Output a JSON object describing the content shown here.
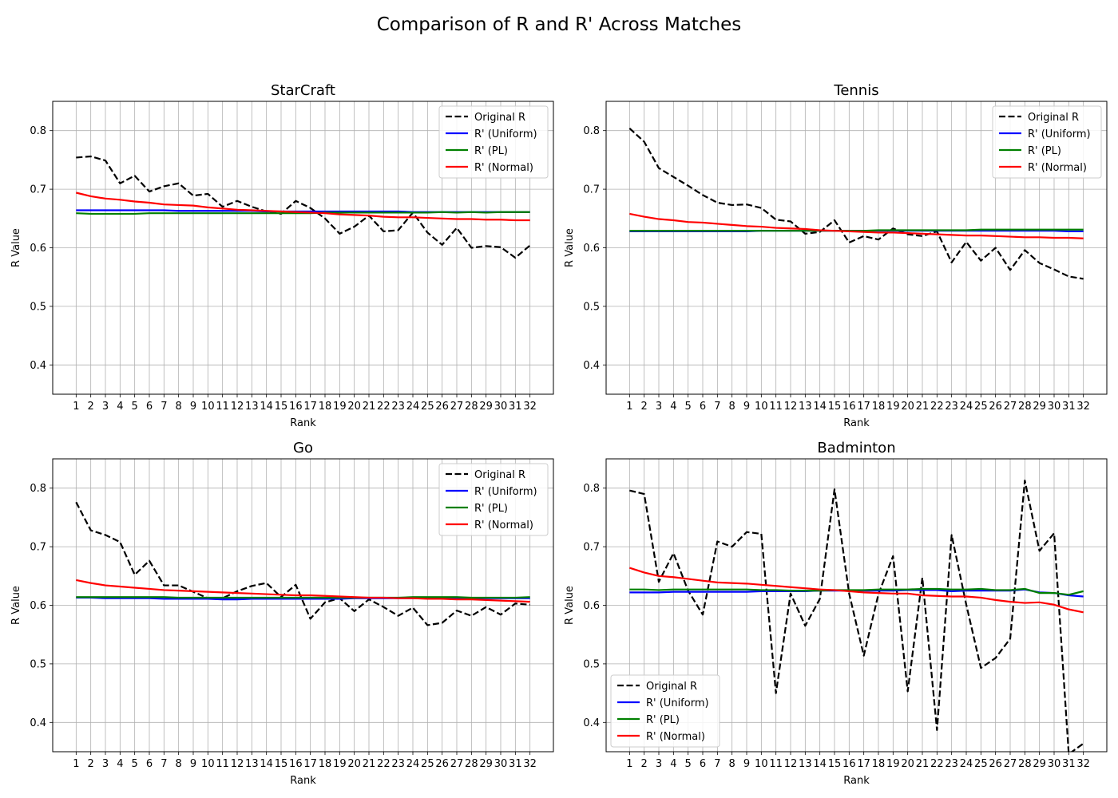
{
  "suptitle": "Comparison of R and R' Across Matches",
  "chart_data": [
    {
      "type": "line",
      "title": "StarCraft",
      "xlabel": "Rank",
      "ylabel": "R Value",
      "x": [
        1,
        2,
        3,
        4,
        5,
        6,
        7,
        8,
        9,
        10,
        11,
        12,
        13,
        14,
        15,
        16,
        17,
        18,
        19,
        20,
        21,
        22,
        23,
        24,
        25,
        26,
        27,
        28,
        29,
        30,
        31,
        32
      ],
      "xlim": [
        -0.6,
        33.6
      ],
      "ylim": [
        0.35,
        0.85
      ],
      "yticks": [
        0.4,
        0.5,
        0.6,
        0.7,
        0.8
      ],
      "grid": true,
      "legend_position": "upper-right",
      "series": [
        {
          "name": "Original R",
          "color": "#000000",
          "dashed": true,
          "values": [
            0.754,
            0.756,
            0.749,
            0.71,
            0.723,
            0.696,
            0.705,
            0.71,
            0.689,
            0.692,
            0.67,
            0.68,
            0.67,
            0.662,
            0.658,
            0.68,
            0.668,
            0.65,
            0.624,
            0.636,
            0.655,
            0.628,
            0.63,
            0.66,
            0.626,
            0.605,
            0.634,
            0.6,
            0.603,
            0.601,
            0.583,
            0.604
          ]
        },
        {
          "name": "R' (Uniform)",
          "color": "#0000ff",
          "dashed": false,
          "values": [
            0.664,
            0.664,
            0.664,
            0.664,
            0.664,
            0.664,
            0.664,
            0.663,
            0.663,
            0.663,
            0.663,
            0.663,
            0.663,
            0.662,
            0.662,
            0.662,
            0.662,
            0.662,
            0.662,
            0.662,
            0.662,
            0.662,
            0.662,
            0.661,
            0.661,
            0.661,
            0.661,
            0.661,
            0.661,
            0.661,
            0.661,
            0.661
          ]
        },
        {
          "name": "R' (PL)",
          "color": "#008000",
          "dashed": false,
          "values": [
            0.659,
            0.658,
            0.658,
            0.658,
            0.658,
            0.659,
            0.659,
            0.659,
            0.659,
            0.659,
            0.659,
            0.659,
            0.659,
            0.659,
            0.659,
            0.659,
            0.659,
            0.66,
            0.66,
            0.66,
            0.66,
            0.66,
            0.66,
            0.66,
            0.66,
            0.661,
            0.66,
            0.661,
            0.66,
            0.661,
            0.661,
            0.661
          ]
        },
        {
          "name": "R' (Normal)",
          "color": "#ff0000",
          "dashed": false,
          "values": [
            0.694,
            0.688,
            0.684,
            0.682,
            0.679,
            0.677,
            0.674,
            0.673,
            0.672,
            0.669,
            0.667,
            0.665,
            0.664,
            0.663,
            0.662,
            0.661,
            0.66,
            0.659,
            0.657,
            0.656,
            0.655,
            0.653,
            0.652,
            0.652,
            0.651,
            0.65,
            0.649,
            0.649,
            0.648,
            0.648,
            0.647,
            0.647
          ]
        }
      ]
    },
    {
      "type": "line",
      "title": "Tennis",
      "xlabel": "Rank",
      "ylabel": "R Value",
      "x": [
        1,
        2,
        3,
        4,
        5,
        6,
        7,
        8,
        9,
        10,
        11,
        12,
        13,
        14,
        15,
        16,
        17,
        18,
        19,
        20,
        21,
        22,
        23,
        24,
        25,
        26,
        27,
        28,
        29,
        30,
        31,
        32
      ],
      "xlim": [
        -0.6,
        33.6
      ],
      "ylim": [
        0.35,
        0.85
      ],
      "yticks": [
        0.4,
        0.5,
        0.6,
        0.7,
        0.8
      ],
      "grid": true,
      "legend_position": "upper-right",
      "series": [
        {
          "name": "Original R",
          "color": "#000000",
          "dashed": true,
          "values": [
            0.804,
            0.781,
            0.736,
            0.721,
            0.706,
            0.69,
            0.677,
            0.673,
            0.674,
            0.668,
            0.648,
            0.645,
            0.624,
            0.627,
            0.647,
            0.609,
            0.62,
            0.614,
            0.633,
            0.623,
            0.62,
            0.628,
            0.575,
            0.61,
            0.578,
            0.6,
            0.562,
            0.596,
            0.574,
            0.563,
            0.551,
            0.547
          ]
        },
        {
          "name": "R' (Uniform)",
          "color": "#0000ff",
          "dashed": false,
          "values": [
            0.628,
            0.628,
            0.628,
            0.628,
            0.628,
            0.628,
            0.628,
            0.628,
            0.628,
            0.629,
            0.629,
            0.629,
            0.629,
            0.629,
            0.629,
            0.629,
            0.629,
            0.629,
            0.629,
            0.629,
            0.629,
            0.629,
            0.629,
            0.629,
            0.629,
            0.629,
            0.629,
            0.629,
            0.629,
            0.629,
            0.628,
            0.628
          ]
        },
        {
          "name": "R' (PL)",
          "color": "#008000",
          "dashed": false,
          "values": [
            0.629,
            0.629,
            0.629,
            0.629,
            0.629,
            0.629,
            0.629,
            0.629,
            0.629,
            0.629,
            0.629,
            0.629,
            0.629,
            0.629,
            0.629,
            0.629,
            0.629,
            0.63,
            0.63,
            0.63,
            0.63,
            0.63,
            0.63,
            0.63,
            0.631,
            0.631,
            0.631,
            0.631,
            0.631,
            0.631,
            0.631,
            0.631
          ]
        },
        {
          "name": "R' (Normal)",
          "color": "#ff0000",
          "dashed": false,
          "values": [
            0.658,
            0.653,
            0.649,
            0.647,
            0.644,
            0.643,
            0.641,
            0.639,
            0.637,
            0.636,
            0.634,
            0.633,
            0.632,
            0.63,
            0.629,
            0.628,
            0.627,
            0.626,
            0.626,
            0.625,
            0.624,
            0.623,
            0.622,
            0.621,
            0.621,
            0.62,
            0.619,
            0.618,
            0.618,
            0.617,
            0.617,
            0.616
          ]
        }
      ]
    },
    {
      "type": "line",
      "title": "Go",
      "xlabel": "Rank",
      "ylabel": "R Value",
      "x": [
        1,
        2,
        3,
        4,
        5,
        6,
        7,
        8,
        9,
        10,
        11,
        12,
        13,
        14,
        15,
        16,
        17,
        18,
        19,
        20,
        21,
        22,
        23,
        24,
        25,
        26,
        27,
        28,
        29,
        30,
        31,
        32
      ],
      "xlim": [
        -0.6,
        33.6
      ],
      "ylim": [
        0.35,
        0.85
      ],
      "yticks": [
        0.4,
        0.5,
        0.6,
        0.7,
        0.8
      ],
      "grid": true,
      "legend_position": "upper-right",
      "series": [
        {
          "name": "Original R",
          "color": "#000000",
          "dashed": true,
          "values": [
            0.776,
            0.728,
            0.72,
            0.708,
            0.652,
            0.676,
            0.634,
            0.634,
            0.623,
            0.612,
            0.612,
            0.624,
            0.633,
            0.638,
            0.614,
            0.635,
            0.577,
            0.605,
            0.612,
            0.59,
            0.61,
            0.597,
            0.582,
            0.596,
            0.566,
            0.57,
            0.591,
            0.582,
            0.597,
            0.584,
            0.603,
            0.601
          ]
        },
        {
          "name": "R' (Uniform)",
          "color": "#0000ff",
          "dashed": false,
          "values": [
            0.613,
            0.613,
            0.612,
            0.612,
            0.612,
            0.612,
            0.611,
            0.611,
            0.611,
            0.611,
            0.61,
            0.61,
            0.611,
            0.611,
            0.611,
            0.611,
            0.611,
            0.611,
            0.611,
            0.612,
            0.612,
            0.612,
            0.612,
            0.612,
            0.612,
            0.612,
            0.612,
            0.612,
            0.612,
            0.612,
            0.612,
            0.612
          ]
        },
        {
          "name": "R' (PL)",
          "color": "#008000",
          "dashed": false,
          "values": [
            0.614,
            0.614,
            0.614,
            0.614,
            0.614,
            0.614,
            0.614,
            0.613,
            0.613,
            0.613,
            0.613,
            0.613,
            0.613,
            0.613,
            0.613,
            0.613,
            0.613,
            0.613,
            0.613,
            0.613,
            0.613,
            0.613,
            0.613,
            0.614,
            0.614,
            0.614,
            0.614,
            0.613,
            0.613,
            0.613,
            0.613,
            0.614
          ]
        },
        {
          "name": "R' (Normal)",
          "color": "#ff0000",
          "dashed": false,
          "values": [
            0.643,
            0.638,
            0.634,
            0.632,
            0.63,
            0.628,
            0.626,
            0.625,
            0.624,
            0.623,
            0.622,
            0.621,
            0.62,
            0.619,
            0.618,
            0.617,
            0.617,
            0.616,
            0.615,
            0.614,
            0.613,
            0.613,
            0.612,
            0.612,
            0.611,
            0.611,
            0.61,
            0.61,
            0.609,
            0.608,
            0.607,
            0.606
          ]
        }
      ]
    },
    {
      "type": "line",
      "title": "Badminton",
      "xlabel": "Rank",
      "ylabel": "R Value",
      "x": [
        1,
        2,
        3,
        4,
        5,
        6,
        7,
        8,
        9,
        10,
        11,
        12,
        13,
        14,
        15,
        16,
        17,
        18,
        19,
        20,
        21,
        22,
        23,
        24,
        25,
        26,
        27,
        28,
        29,
        30,
        31,
        32
      ],
      "xlim": [
        -0.6,
        33.6
      ],
      "ylim": [
        0.35,
        0.85
      ],
      "yticks": [
        0.4,
        0.5,
        0.6,
        0.7,
        0.8
      ],
      "grid": true,
      "legend_position": "lower-left",
      "series": [
        {
          "name": "Original R",
          "color": "#000000",
          "dashed": true,
          "values": [
            0.796,
            0.79,
            0.64,
            0.689,
            0.625,
            0.584,
            0.709,
            0.7,
            0.725,
            0.722,
            0.45,
            0.62,
            0.565,
            0.611,
            0.798,
            0.62,
            0.514,
            0.619,
            0.684,
            0.453,
            0.647,
            0.387,
            0.72,
            0.601,
            0.493,
            0.51,
            0.543,
            0.813,
            0.693,
            0.723,
            0.346,
            0.364
          ]
        },
        {
          "name": "R' (Uniform)",
          "color": "#0000ff",
          "dashed": false,
          "values": [
            0.622,
            0.622,
            0.622,
            0.623,
            0.623,
            0.623,
            0.623,
            0.623,
            0.623,
            0.624,
            0.624,
            0.624,
            0.624,
            0.625,
            0.625,
            0.625,
            0.625,
            0.625,
            0.625,
            0.626,
            0.626,
            0.626,
            0.624,
            0.625,
            0.625,
            0.625,
            0.625,
            0.627,
            0.622,
            0.621,
            0.617,
            0.615
          ]
        },
        {
          "name": "R' (PL)",
          "color": "#008000",
          "dashed": false,
          "values": [
            0.627,
            0.627,
            0.626,
            0.627,
            0.627,
            0.627,
            0.627,
            0.627,
            0.627,
            0.626,
            0.626,
            0.625,
            0.625,
            0.625,
            0.626,
            0.626,
            0.626,
            0.627,
            0.627,
            0.627,
            0.628,
            0.628,
            0.627,
            0.627,
            0.628,
            0.626,
            0.626,
            0.628,
            0.621,
            0.621,
            0.618,
            0.624
          ]
        },
        {
          "name": "R' (Normal)",
          "color": "#ff0000",
          "dashed": false,
          "values": [
            0.664,
            0.656,
            0.65,
            0.648,
            0.645,
            0.642,
            0.639,
            0.638,
            0.637,
            0.635,
            0.633,
            0.631,
            0.629,
            0.627,
            0.626,
            0.624,
            0.622,
            0.621,
            0.62,
            0.62,
            0.617,
            0.616,
            0.615,
            0.615,
            0.613,
            0.609,
            0.606,
            0.604,
            0.605,
            0.601,
            0.593,
            0.588
          ]
        }
      ]
    }
  ]
}
